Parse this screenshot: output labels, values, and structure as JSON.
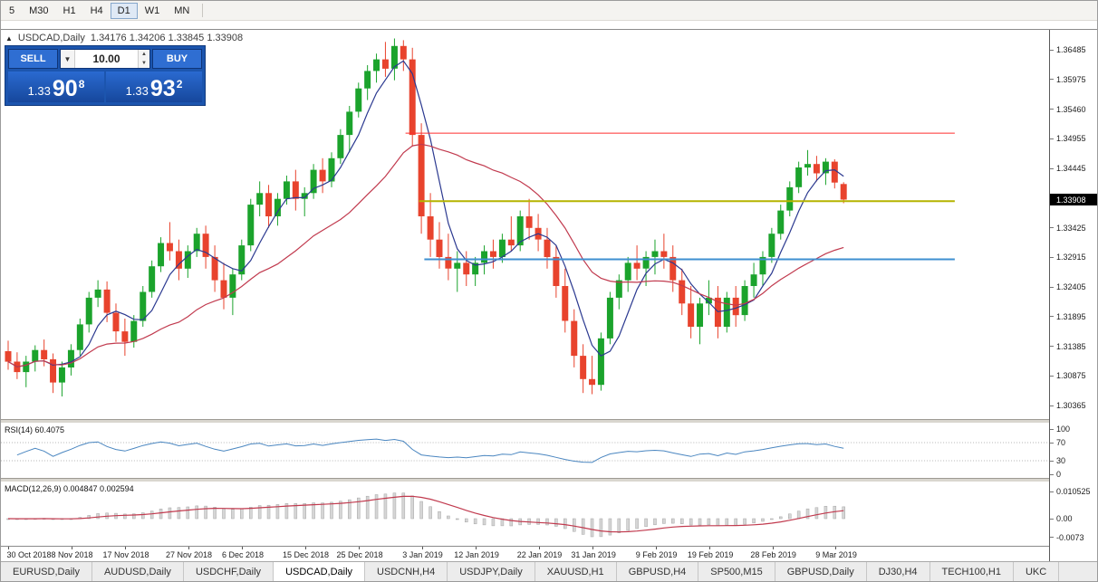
{
  "toolbar": {
    "timeframes": [
      "5",
      "M30",
      "H1",
      "H4",
      "D1",
      "W1",
      "MN"
    ],
    "active": "D1"
  },
  "chart_header": {
    "symbol": "USDCAD,Daily",
    "ohlc": "1.34176 1.34206 1.33845 1.33908"
  },
  "trade_panel": {
    "sell_label": "SELL",
    "buy_label": "BUY",
    "volume": "10.00",
    "dropdown_icon": "▼",
    "spin_up_icon": "▲",
    "spin_down_icon": "▼",
    "sell_price_prefix": "1.33",
    "sell_price_main": "90",
    "sell_price_sup": "8",
    "buy_price_prefix": "1.33",
    "buy_price_main": "93",
    "buy_price_sup": "2"
  },
  "price_scale": {
    "labels": [
      "1.36485",
      "1.35975",
      "1.35460",
      "1.34955",
      "1.34445",
      "1.33930",
      "1.33425",
      "1.32915",
      "1.32405",
      "1.31895",
      "1.31385",
      "1.30875",
      "1.30365"
    ],
    "current": "1.33908",
    "current_value": 1.33908
  },
  "rsi": {
    "label": "RSI(14) 60.4075",
    "levels": [
      {
        "label": "100",
        "value": 100
      },
      {
        "label": "70",
        "value": 70
      },
      {
        "label": "30",
        "value": 30
      },
      {
        "label": "0",
        "value": 0
      }
    ]
  },
  "macd": {
    "label": "MACD(12,26,9) 0.004847 0.002594",
    "levels": [
      {
        "label": "0.010525",
        "value": 0.010525
      },
      {
        "label": "0.00",
        "value": 0
      },
      {
        "label": "-0.0073",
        "value": -0.0073
      }
    ]
  },
  "date_axis": [
    {
      "label": "30 Oct 2018",
      "i": 0
    },
    {
      "label": "8 Nov 2018",
      "i": 7
    },
    {
      "label": "17 Nov 2018",
      "i": 13
    },
    {
      "label": "27 Nov 2018",
      "i": 20
    },
    {
      "label": "6 Dec 2018",
      "i": 26
    },
    {
      "label": "15 Dec 2018",
      "i": 33
    },
    {
      "label": "25 Dec 2018",
      "i": 39
    },
    {
      "label": "3 Jan 2019",
      "i": 46
    },
    {
      "label": "12 Jan 2019",
      "i": 52
    },
    {
      "label": "22 Jan 2019",
      "i": 59
    },
    {
      "label": "31 Jan 2019",
      "i": 65
    },
    {
      "label": "9 Feb 2019",
      "i": 72
    },
    {
      "label": "19 Feb 2019",
      "i": 78
    },
    {
      "label": "28 Feb 2019",
      "i": 85
    },
    {
      "label": "9 Mar 2019",
      "i": 92
    }
  ],
  "tabs": {
    "items": [
      "EURUSD,Daily",
      "AUDUSD,Daily",
      "USDCHF,Daily",
      "USDCAD,Daily",
      "USDCNH,H4",
      "USDJPY,Daily",
      "XAUUSD,H1",
      "GBPUSD,H4",
      "SP500,M15",
      "GBPUSD,Daily",
      "DJ30,H4",
      "TECH100,H1",
      "UKC"
    ],
    "active": "USDCAD,Daily"
  },
  "chart_data": {
    "type": "candlestick",
    "title": "USDCAD,Daily",
    "price_axis": {
      "top": 1.36485,
      "bottom": 1.30365
    },
    "colors": {
      "bull": "#1BA32C",
      "bear": "#E8432D",
      "ma_fast": "#2B3990",
      "ma_slow": "#C13A4E",
      "rsi": "#4A86C0",
      "rsi_levels": "#b5b5b5",
      "macd_hist_fill": "#d6d6d6",
      "macd_hist_stroke": "#a5a5a5",
      "macd_signal": "#C13A4E"
    },
    "overlays": [
      {
        "name": "MA fast",
        "period": 5
      },
      {
        "name": "MA slow",
        "period": 20
      }
    ],
    "hlines": [
      {
        "price": 1.3505,
        "color": "#FF2D2D",
        "width": 1,
        "x1": 0.386,
        "x2": 0.91
      },
      {
        "price": 1.3388,
        "color": "#B5B400",
        "width": 2,
        "x1": 0.399,
        "x2": 0.91
      },
      {
        "price": 1.3288,
        "color": "#3E8FD0",
        "width": 2,
        "x1": 0.404,
        "x2": 0.91
      }
    ],
    "indicators": {
      "rsi": {
        "period": 14,
        "last": 60.4075
      },
      "macd": {
        "fast": 12,
        "slow": 26,
        "signal": 9,
        "last": 0.004847,
        "signal_last": 0.002594
      }
    },
    "ohlc": [
      [
        1.313,
        1.3148,
        1.3098,
        1.3112
      ],
      [
        1.3112,
        1.3128,
        1.3082,
        1.3094
      ],
      [
        1.3094,
        1.3122,
        1.3068,
        1.3112
      ],
      [
        1.3112,
        1.314,
        1.3095,
        1.3132
      ],
      [
        1.3132,
        1.315,
        1.3104,
        1.3116
      ],
      [
        1.3116,
        1.3126,
        1.3058,
        1.3076
      ],
      [
        1.3076,
        1.3112,
        1.3052,
        1.3102
      ],
      [
        1.3102,
        1.3142,
        1.3088,
        1.3132
      ],
      [
        1.3132,
        1.3186,
        1.3122,
        1.3176
      ],
      [
        1.3176,
        1.3232,
        1.3162,
        1.3222
      ],
      [
        1.3222,
        1.3252,
        1.3206,
        1.3236
      ],
      [
        1.3236,
        1.325,
        1.318,
        1.3196
      ],
      [
        1.3196,
        1.3212,
        1.3146,
        1.3164
      ],
      [
        1.3164,
        1.3186,
        1.3122,
        1.3146
      ],
      [
        1.3146,
        1.3192,
        1.3136,
        1.3182
      ],
      [
        1.3182,
        1.3242,
        1.3172,
        1.3232
      ],
      [
        1.3232,
        1.3286,
        1.3222,
        1.3276
      ],
      [
        1.3276,
        1.3326,
        1.3266,
        1.3316
      ],
      [
        1.3316,
        1.3352,
        1.3286,
        1.3302
      ],
      [
        1.3302,
        1.3322,
        1.3252,
        1.3272
      ],
      [
        1.3272,
        1.3312,
        1.3256,
        1.3302
      ],
      [
        1.3302,
        1.3342,
        1.3292,
        1.3332
      ],
      [
        1.3332,
        1.3346,
        1.3272,
        1.3292
      ],
      [
        1.3292,
        1.3312,
        1.3232,
        1.3252
      ],
      [
        1.3252,
        1.3282,
        1.3202,
        1.3222
      ],
      [
        1.3222,
        1.3272,
        1.3192,
        1.3262
      ],
      [
        1.3262,
        1.3322,
        1.3252,
        1.3312
      ],
      [
        1.3312,
        1.3392,
        1.3302,
        1.3382
      ],
      [
        1.3382,
        1.3422,
        1.3362,
        1.3402
      ],
      [
        1.3402,
        1.3416,
        1.3342,
        1.3362
      ],
      [
        1.3362,
        1.3402,
        1.3346,
        1.3392
      ],
      [
        1.3392,
        1.3432,
        1.3382,
        1.3422
      ],
      [
        1.3422,
        1.3442,
        1.3372,
        1.3392
      ],
      [
        1.3392,
        1.3412,
        1.3362,
        1.3402
      ],
      [
        1.3402,
        1.3452,
        1.3392,
        1.3442
      ],
      [
        1.3442,
        1.3462,
        1.3402,
        1.3422
      ],
      [
        1.3422,
        1.3472,
        1.3412,
        1.3462
      ],
      [
        1.3462,
        1.3512,
        1.3452,
        1.3502
      ],
      [
        1.3502,
        1.3552,
        1.3472,
        1.3542
      ],
      [
        1.3542,
        1.3592,
        1.3532,
        1.3582
      ],
      [
        1.3582,
        1.3622,
        1.3562,
        1.3612
      ],
      [
        1.3612,
        1.3642,
        1.3592,
        1.3632
      ],
      [
        1.3632,
        1.3662,
        1.3602,
        1.3616
      ],
      [
        1.3616,
        1.3668,
        1.3596,
        1.3655
      ],
      [
        1.3655,
        1.3665,
        1.3612,
        1.3632
      ],
      [
        1.3632,
        1.3652,
        1.3482,
        1.3502
      ],
      [
        1.3502,
        1.3522,
        1.3332,
        1.3362
      ],
      [
        1.3362,
        1.3402,
        1.3292,
        1.3322
      ],
      [
        1.3322,
        1.3352,
        1.3272,
        1.3292
      ],
      [
        1.3292,
        1.3332,
        1.3252,
        1.3272
      ],
      [
        1.3272,
        1.3302,
        1.3232,
        1.3282
      ],
      [
        1.3282,
        1.3302,
        1.3242,
        1.3262
      ],
      [
        1.3262,
        1.3292,
        1.3242,
        1.3282
      ],
      [
        1.3282,
        1.3312,
        1.3262,
        1.3302
      ],
      [
        1.3302,
        1.3322,
        1.3272,
        1.3292
      ],
      [
        1.3292,
        1.3332,
        1.3282,
        1.3322
      ],
      [
        1.3322,
        1.3362,
        1.3302,
        1.3312
      ],
      [
        1.3312,
        1.3372,
        1.3302,
        1.3362
      ],
      [
        1.3362,
        1.3392,
        1.3322,
        1.3342
      ],
      [
        1.3342,
        1.3366,
        1.3302,
        1.3322
      ],
      [
        1.3322,
        1.3342,
        1.3272,
        1.3292
      ],
      [
        1.3292,
        1.3312,
        1.3222,
        1.3242
      ],
      [
        1.3242,
        1.3272,
        1.3162,
        1.3182
      ],
      [
        1.3182,
        1.3202,
        1.3102,
        1.3122
      ],
      [
        1.3122,
        1.3142,
        1.3058,
        1.3082
      ],
      [
        1.3082,
        1.3122,
        1.3056,
        1.3072
      ],
      [
        1.3072,
        1.3162,
        1.3062,
        1.3152
      ],
      [
        1.3152,
        1.3232,
        1.3142,
        1.3222
      ],
      [
        1.3222,
        1.3262,
        1.3202,
        1.3252
      ],
      [
        1.3252,
        1.3292,
        1.3232,
        1.3282
      ],
      [
        1.3282,
        1.3312,
        1.3252,
        1.3272
      ],
      [
        1.3272,
        1.3302,
        1.3242,
        1.3292
      ],
      [
        1.3292,
        1.3322,
        1.3262,
        1.3302
      ],
      [
        1.3302,
        1.3332,
        1.3272,
        1.3292
      ],
      [
        1.3292,
        1.3312,
        1.3232,
        1.3252
      ],
      [
        1.3252,
        1.3272,
        1.3192,
        1.3212
      ],
      [
        1.3212,
        1.3242,
        1.3152,
        1.3172
      ],
      [
        1.3172,
        1.3222,
        1.3142,
        1.3212
      ],
      [
        1.3212,
        1.3252,
        1.3192,
        1.3222
      ],
      [
        1.3222,
        1.3242,
        1.3152,
        1.3172
      ],
      [
        1.3172,
        1.3232,
        1.3162,
        1.3222
      ],
      [
        1.3222,
        1.3242,
        1.3172,
        1.3192
      ],
      [
        1.3192,
        1.3252,
        1.3182,
        1.3242
      ],
      [
        1.3242,
        1.3282,
        1.3222,
        1.3262
      ],
      [
        1.3262,
        1.3302,
        1.3242,
        1.3292
      ],
      [
        1.3292,
        1.3342,
        1.3282,
        1.3332
      ],
      [
        1.3332,
        1.3382,
        1.3322,
        1.3372
      ],
      [
        1.3372,
        1.3422,
        1.3362,
        1.3412
      ],
      [
        1.3412,
        1.3456,
        1.3402,
        1.3446
      ],
      [
        1.3446,
        1.3476,
        1.3432,
        1.3452
      ],
      [
        1.3452,
        1.3466,
        1.3422,
        1.3436
      ],
      [
        1.3436,
        1.3462,
        1.3416,
        1.3456
      ],
      [
        1.3456,
        1.346,
        1.341,
        1.342
      ],
      [
        1.34176,
        1.34206,
        1.33845,
        1.33908
      ]
    ]
  }
}
